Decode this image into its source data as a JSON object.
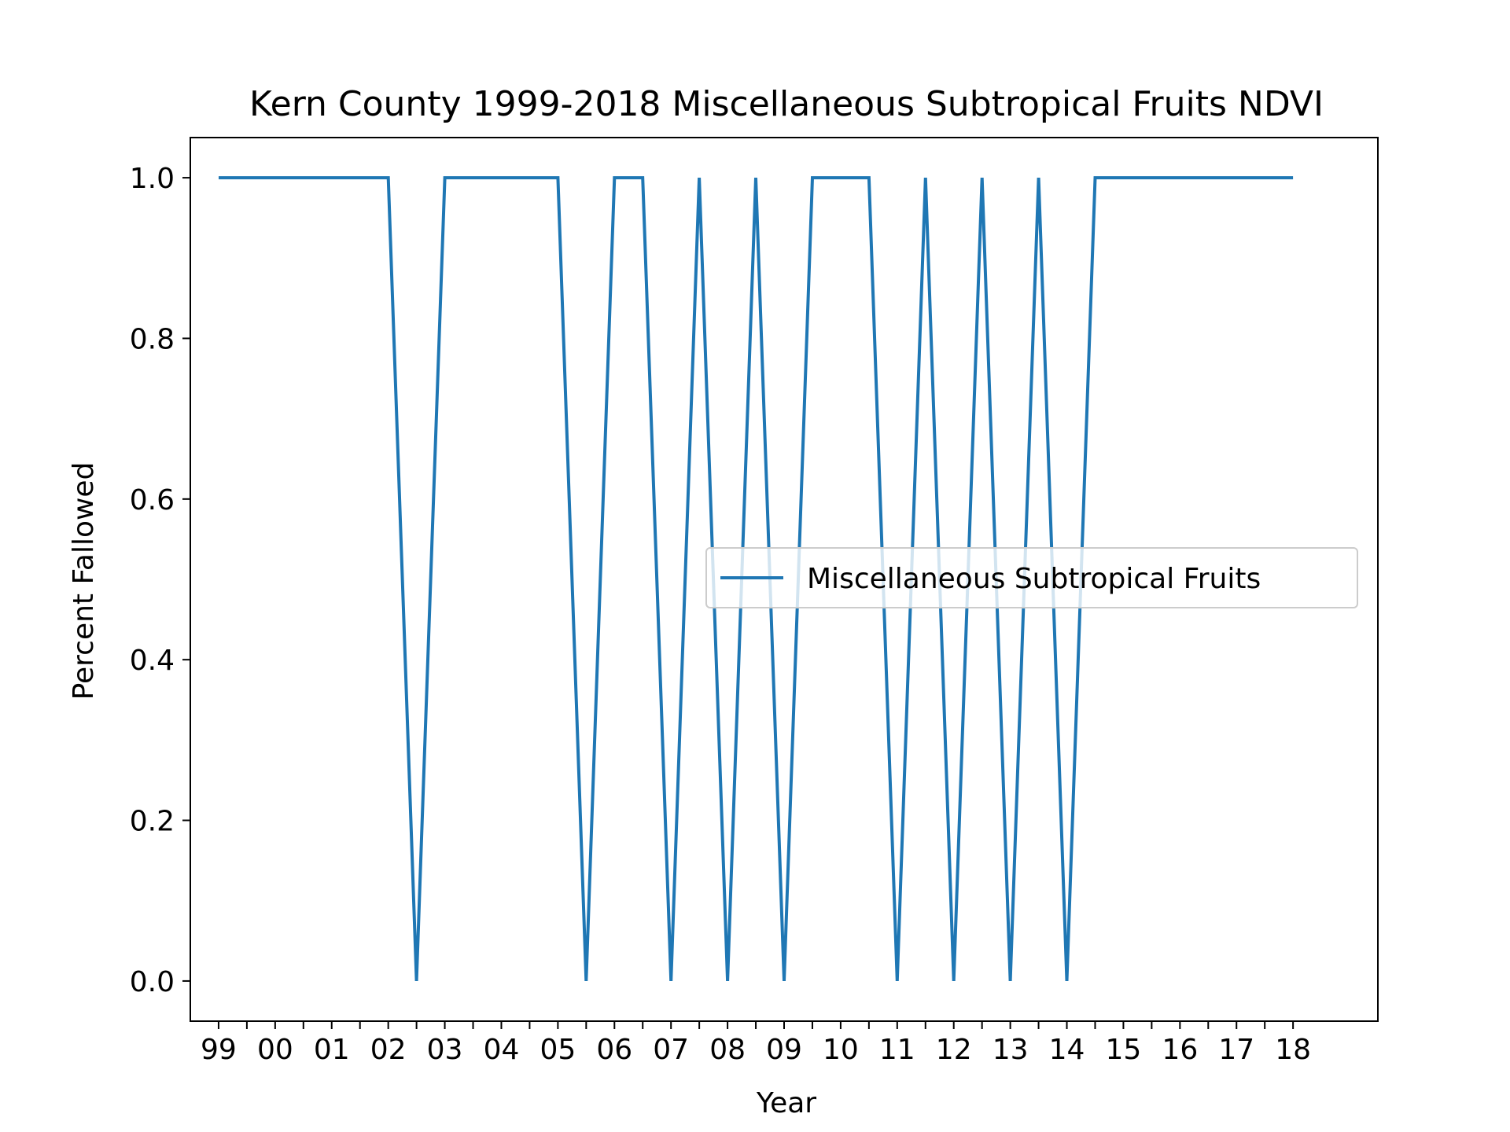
{
  "chart_data": {
    "type": "line",
    "title": "Kern County 1999-2018 Miscellaneous Subtropical Fruits NDVI",
    "xlabel": "Year",
    "ylabel": "Percent Fallowed",
    "xlim": [
      1998.5,
      2019.5
    ],
    "ylim": [
      -0.05,
      1.05
    ],
    "x_ticks": [
      1999,
      2000,
      2001,
      2002,
      2003,
      2004,
      2005,
      2006,
      2007,
      2008,
      2009,
      2010,
      2011,
      2012,
      2013,
      2014,
      2015,
      2016,
      2017,
      2018
    ],
    "x_tick_labels": [
      "99",
      "00",
      "01",
      "02",
      "03",
      "04",
      "05",
      "06",
      "07",
      "08",
      "09",
      "10",
      "11",
      "12",
      "13",
      "14",
      "15",
      "16",
      "17",
      "18"
    ],
    "x_minor_ticks": [
      1999.5,
      2000.5,
      2001.5,
      2002.5,
      2003.5,
      2004.5,
      2005.5,
      2006.5,
      2007.5,
      2008.5,
      2009.5,
      2010.5,
      2011.5,
      2012.5,
      2013.5,
      2014.5,
      2015.5,
      2016.5,
      2017.5
    ],
    "y_ticks": [
      0.0,
      0.2,
      0.4,
      0.6,
      0.8,
      1.0
    ],
    "y_tick_labels": [
      "0.0",
      "0.2",
      "0.4",
      "0.6",
      "0.8",
      "1.0"
    ],
    "grid": false,
    "legend_position": "center-right",
    "series": [
      {
        "name": "Miscellaneous Subtropical Fruits",
        "color": "#1f77b4",
        "x": [
          1999,
          1999.5,
          2000,
          2000.5,
          2001,
          2001.5,
          2002,
          2002.5,
          2003,
          2003.5,
          2004,
          2004.5,
          2005,
          2005.5,
          2006,
          2006.5,
          2007,
          2007.5,
          2008,
          2008.5,
          2009,
          2009.5,
          2010,
          2010.5,
          2011,
          2011.5,
          2012,
          2012.5,
          2013,
          2013.5,
          2014,
          2014.5,
          2015,
          2015.5,
          2016,
          2016.5,
          2017,
          2017.5,
          2018
        ],
        "y": [
          1,
          1,
          1,
          1,
          1,
          1,
          1,
          0,
          1,
          1,
          1,
          1,
          1,
          0,
          1,
          1,
          0,
          1,
          0,
          1,
          0,
          1,
          1,
          1,
          0,
          1,
          0,
          1,
          0,
          1,
          0,
          1,
          1,
          1,
          1,
          1,
          1,
          1,
          1
        ]
      }
    ]
  }
}
